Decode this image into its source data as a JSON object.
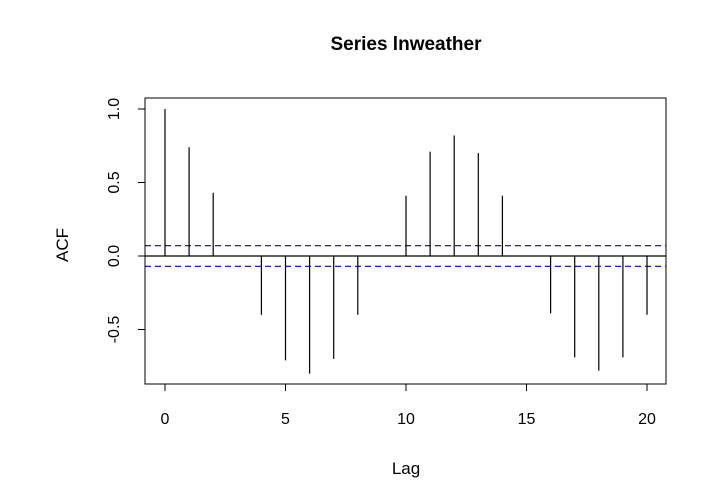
{
  "chart_data": {
    "type": "bar",
    "title": "Series  lnweather",
    "xlabel": "Lag",
    "ylabel": "ACF",
    "xlim": [
      0,
      20
    ],
    "ylim": [
      -0.88,
      1.05
    ],
    "x_ticks": [
      0,
      5,
      10,
      15,
      20
    ],
    "y_ticks": [
      -0.5,
      0.0,
      0.5,
      1.0
    ],
    "x_tick_labels": [
      "0",
      "5",
      "10",
      "15",
      "20"
    ],
    "y_tick_labels": [
      "-0.5",
      "0.0",
      "0.5",
      "1.0"
    ],
    "grid": false,
    "lags": [
      0,
      1,
      2,
      3,
      4,
      5,
      6,
      7,
      8,
      9,
      10,
      11,
      12,
      13,
      14,
      15,
      16,
      17,
      18,
      19,
      20
    ],
    "acf": [
      1.0,
      0.74,
      0.43,
      0.0,
      -0.4,
      -0.71,
      -0.8,
      -0.7,
      -0.4,
      0.0,
      0.41,
      0.71,
      0.82,
      0.7,
      0.41,
      0.0,
      -0.39,
      -0.69,
      -0.78,
      -0.69,
      -0.4
    ],
    "confidence_bound": 0.07,
    "colors": {
      "spikes": "#000000",
      "confidence": "#0000cd",
      "zero_line": "#000000"
    }
  }
}
